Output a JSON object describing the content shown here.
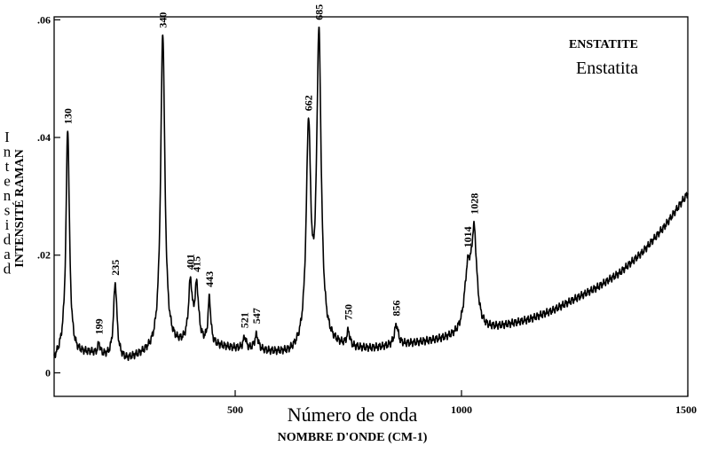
{
  "chart_data": {
    "type": "line",
    "title": "ENSTATITE",
    "subtitle": "Enstatita",
    "xlabel": "Número de onda",
    "xlabel_secondary": "NOMBRE D'ONDE (CM-1)",
    "ylabel": "INTENSITÉ RAMAN",
    "ylabel_secondary": "Intensidad",
    "xlim": [
      100,
      1500
    ],
    "ylim": [
      -0.004,
      0.0605
    ],
    "x_ticks": [
      500,
      1000,
      1500
    ],
    "x_tick_labels": [
      "500",
      "1000",
      "1500"
    ],
    "y_ticks": [
      0,
      0.02,
      0.04,
      0.06
    ],
    "y_tick_labels": [
      "0",
      ".02",
      ".04",
      ".06"
    ],
    "peak_labels": [
      {
        "x": 130,
        "label": "130"
      },
      {
        "x": 199,
        "label": "199"
      },
      {
        "x": 235,
        "label": "235"
      },
      {
        "x": 340,
        "label": "340"
      },
      {
        "x": 401,
        "label": "401"
      },
      {
        "x": 415,
        "label": "415"
      },
      {
        "x": 443,
        "label": "443"
      },
      {
        "x": 521,
        "label": "521"
      },
      {
        "x": 547,
        "label": "547"
      },
      {
        "x": 662,
        "label": "662"
      },
      {
        "x": 685,
        "label": "685"
      },
      {
        "x": 750,
        "label": "750"
      },
      {
        "x": 856,
        "label": "856"
      },
      {
        "x": 1014,
        "label": "1014"
      },
      {
        "x": 1028,
        "label": "1028"
      }
    ],
    "series": [
      {
        "baseline": [
          [
            100,
            0.002
          ],
          [
            120,
            0.0035
          ],
          [
            150,
            0.003
          ],
          [
            180,
            0.0032
          ],
          [
            220,
            0.0025
          ],
          [
            260,
            0.002
          ],
          [
            300,
            0.003
          ],
          [
            350,
            0.004
          ],
          [
            400,
            0.0045
          ],
          [
            450,
            0.0045
          ],
          [
            500,
            0.004
          ],
          [
            560,
            0.0035
          ],
          [
            620,
            0.003
          ],
          [
            700,
            0.0045
          ],
          [
            760,
            0.004
          ],
          [
            800,
            0.004
          ],
          [
            850,
            0.0045
          ],
          [
            900,
            0.005
          ],
          [
            950,
            0.0055
          ],
          [
            1000,
            0.006
          ],
          [
            1050,
            0.007
          ],
          [
            1100,
            0.008
          ],
          [
            1150,
            0.009
          ],
          [
            1200,
            0.0105
          ],
          [
            1250,
            0.0125
          ],
          [
            1300,
            0.0145
          ],
          [
            1350,
            0.017
          ],
          [
            1400,
            0.0205
          ],
          [
            1450,
            0.025
          ],
          [
            1500,
            0.0305
          ]
        ],
        "peaks": [
          {
            "x": 130,
            "height": 0.0382,
            "width": 4.5
          },
          {
            "x": 199,
            "height": 0.0018,
            "width": 3
          },
          {
            "x": 235,
            "height": 0.0128,
            "width": 4.5
          },
          {
            "x": 340,
            "height": 0.054,
            "width": 5.5
          },
          {
            "x": 401,
            "height": 0.01,
            "width": 5
          },
          {
            "x": 415,
            "height": 0.0095,
            "width": 5
          },
          {
            "x": 443,
            "height": 0.0078,
            "width": 3.5
          },
          {
            "x": 521,
            "height": 0.002,
            "width": 4
          },
          {
            "x": 547,
            "height": 0.0025,
            "width": 5
          },
          {
            "x": 662,
            "height": 0.0365,
            "width": 6
          },
          {
            "x": 685,
            "height": 0.052,
            "width": 6
          },
          {
            "x": 750,
            "height": 0.0025,
            "width": 4
          },
          {
            "x": 856,
            "height": 0.0035,
            "width": 5
          },
          {
            "x": 1014,
            "height": 0.01,
            "width": 9
          },
          {
            "x": 1028,
            "height": 0.0155,
            "width": 7
          }
        ]
      }
    ],
    "grid": false,
    "line_color": "#000000"
  }
}
